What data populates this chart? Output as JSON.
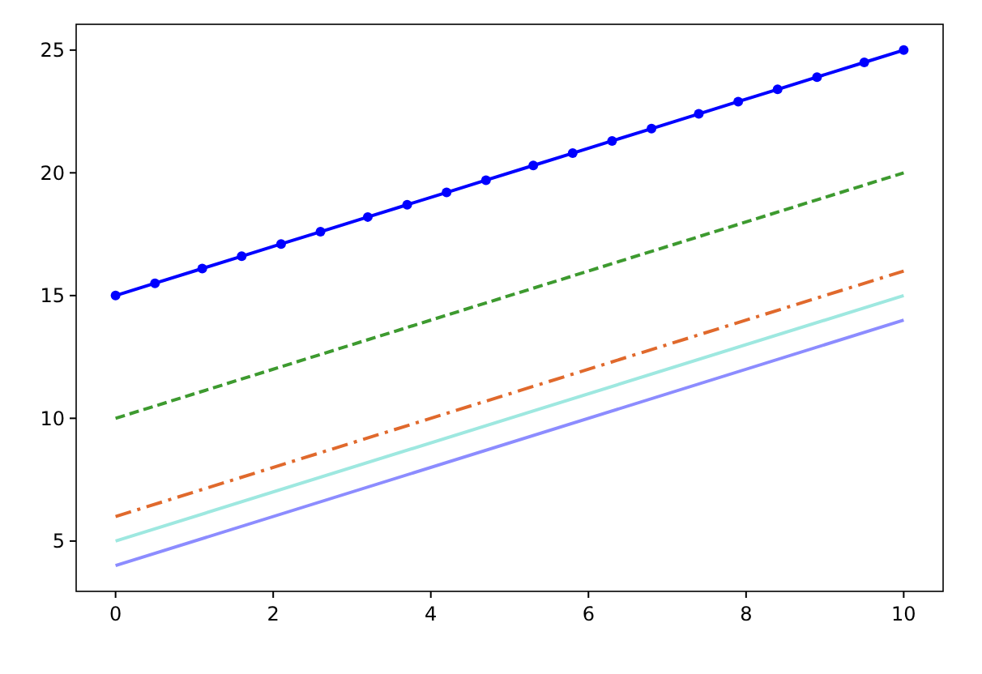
{
  "chart_data": {
    "type": "line",
    "xlim": [
      -0.5,
      10.5
    ],
    "ylim": [
      2.95,
      26.05
    ],
    "xticks": [
      0,
      2,
      4,
      6,
      8,
      10
    ],
    "yticks": [
      5,
      10,
      15,
      20,
      25
    ],
    "grid": false,
    "series": [
      {
        "color": "#0000ff",
        "marker": "circle",
        "line_style": "solid",
        "x": [
          0,
          0.5,
          1.1,
          1.6,
          2.1,
          2.6,
          3.2,
          3.7,
          4.2,
          4.7,
          5.3,
          5.8,
          6.3,
          6.8,
          7.4,
          7.9,
          8.4,
          8.9,
          9.5,
          10
        ],
        "values": [
          15,
          15.5,
          16.1,
          16.6,
          17.1,
          17.6,
          18.2,
          18.7,
          19.2,
          19.7,
          20.3,
          20.8,
          21.3,
          21.8,
          22.4,
          22.9,
          23.4,
          23.9,
          24.5,
          25
        ]
      },
      {
        "color": "#3d9a2f",
        "marker": "none",
        "line_style": "dashed",
        "x": [
          0,
          10
        ],
        "values": [
          10,
          20
        ]
      },
      {
        "color": "#e0692c",
        "marker": "none",
        "line_style": "dashdot",
        "x": [
          0,
          10
        ],
        "values": [
          6,
          16
        ]
      },
      {
        "color": "#9ee8e0",
        "marker": "none",
        "line_style": "solid",
        "x": [
          0,
          10
        ],
        "values": [
          5,
          15
        ]
      },
      {
        "color": "#8c8cff",
        "marker": "none",
        "line_style": "solid",
        "x": [
          0,
          10
        ],
        "values": [
          4,
          14
        ]
      }
    ]
  }
}
